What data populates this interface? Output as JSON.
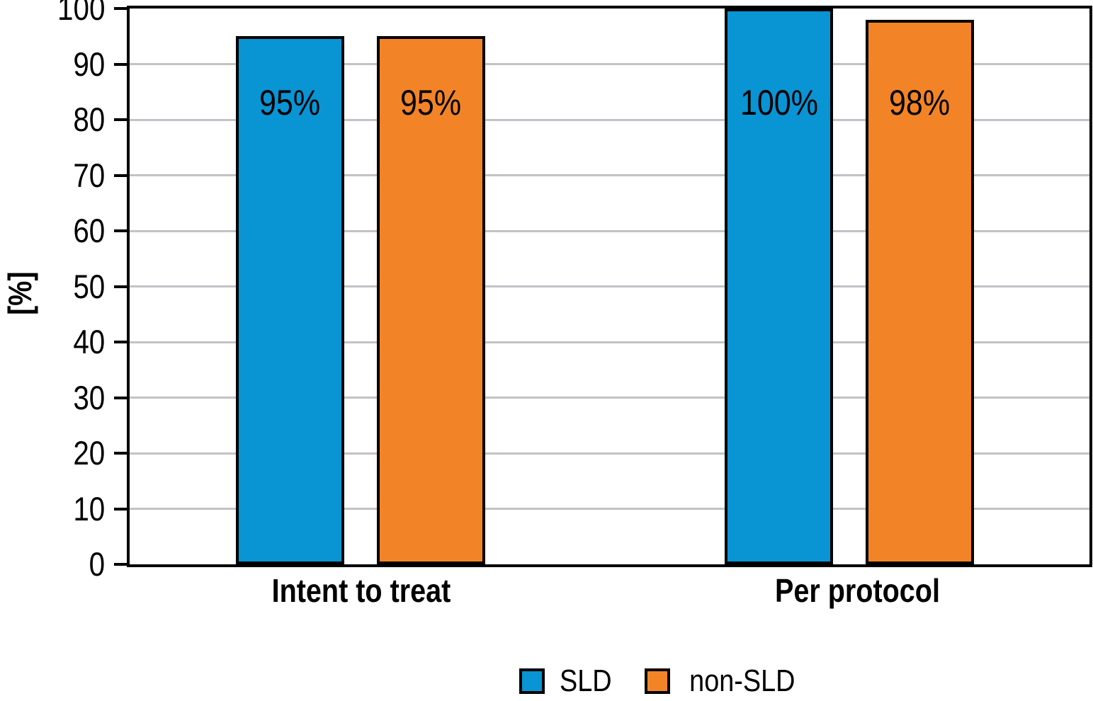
{
  "chart_data": {
    "type": "bar",
    "categories": [
      "Intent to treat",
      "Per protocol"
    ],
    "series": [
      {
        "name": "SLD",
        "color": "#0994d4",
        "values": [
          95,
          100
        ],
        "labels": [
          "95%",
          "100%"
        ]
      },
      {
        "name": "non-SLD",
        "color": "#f28427",
        "values": [
          95,
          98
        ],
        "labels": [
          "95%",
          "98%"
        ]
      }
    ],
    "title": "",
    "xlabel": "",
    "ylabel": "[%]",
    "ylim": [
      0,
      100
    ],
    "yticks": [
      0,
      10,
      20,
      30,
      40,
      50,
      60,
      70,
      80,
      90,
      100
    ],
    "grid": true,
    "grid_color": "#c2c2c7",
    "axis_color": "#000000",
    "value_label_color": "#000000",
    "legend_position": "bottom"
  }
}
